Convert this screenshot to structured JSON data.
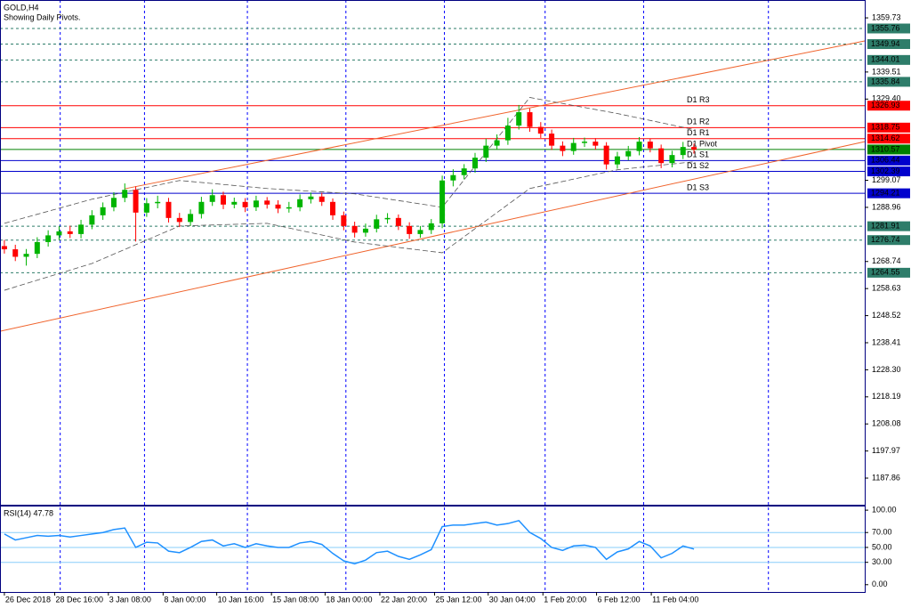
{
  "chart_data": {
    "type": "candlestick",
    "title": "GOLD,H4",
    "subtitle": "Showing Daily Pivots.",
    "bull_color": "#00b400",
    "bear_color": "#ff0000",
    "xlim": [
      -0.4,
      78.6
    ],
    "ylim": [
      1177.9,
      1366.4
    ],
    "xticks": [
      {
        "value": 0,
        "label": "26 Dec 2018"
      },
      {
        "value": 4.6,
        "label": "28 Dec 16:00"
      },
      {
        "value": 9.5,
        "label": "3 Jan 08:00"
      },
      {
        "value": 14.5,
        "label": "8 Jan 00:00"
      },
      {
        "value": 19.4,
        "label": "10 Jan 16:00"
      },
      {
        "value": 24.4,
        "label": "15 Jan 08:00"
      },
      {
        "value": 29.3,
        "label": "18 Jan 00:00"
      },
      {
        "value": 34.3,
        "label": "22 Jan 20:00"
      },
      {
        "value": 39.3,
        "label": "25 Jan 12:00"
      },
      {
        "value": 44.2,
        "label": "30 Jan 04:00"
      },
      {
        "value": 49.2,
        "label": "1 Feb 20:00"
      },
      {
        "value": 54.1,
        "label": "6 Feb 12:00"
      },
      {
        "value": 59.1,
        "label": "11 Feb 04:00"
      }
    ],
    "xgrid": [
      5.1,
      12.8,
      22.2,
      31.2,
      40.2,
      49.4,
      58.4,
      69.8
    ],
    "yticks": [
      1359.73,
      1339.51,
      {
        "value": 1329.4,
        "label": "1329.40"
      },
      1299.07,
      1288.96,
      1268.74,
      1258.63,
      1248.52,
      1238.41,
      {
        "value": 1228.3,
        "label": "1228.30"
      },
      1218.19,
      1208.08,
      1197.97,
      1187.86
    ],
    "open": [
      1274.5,
      1273.3,
      1270.5,
      1271.6,
      1276.0,
      1278.5,
      1280.0,
      1279.0,
      1282.5,
      1286.0,
      1289.0,
      1292.5,
      1295.5,
      1287.0,
      1290.5,
      1291.0,
      1285.0,
      1283.5,
      1286.5,
      1291.0,
      1293.5,
      1290.0,
      1291.0,
      1289.0,
      1291.5,
      1290.0,
      1288.5,
      1289.0,
      1292.0,
      1293.0,
      1291.0,
      1286.0,
      1282.0,
      1279.5,
      1281.0,
      1284.5,
      1285.0,
      1282.0,
      1279.0,
      1280.5,
      1283.0,
      1299.0,
      1301.0,
      1303.5,
      1307.5,
      1312.0,
      1314.0,
      1319.5,
      1324.5,
      1319.0,
      1316.5,
      1312.0,
      1310.0,
      1313.0,
      1313.5,
      1312.0,
      1305.0,
      1308.0,
      1310.0,
      1313.5,
      1311.0,
      1305.5,
      1308.5,
      1311.5
    ],
    "high": [
      1276.8,
      1275.0,
      1273.4,
      1277.8,
      1280.4,
      1281.9,
      1282.1,
      1284.3,
      1287.9,
      1290.8,
      1294.6,
      1297.9,
      1296.8,
      1292.4,
      1293.3,
      1292.5,
      1286.9,
      1288.2,
      1292.9,
      1295.7,
      1294.8,
      1292.6,
      1292.4,
      1293.3,
      1292.8,
      1291.6,
      1291.0,
      1293.8,
      1294.5,
      1294.4,
      1292.3,
      1287.4,
      1283.6,
      1282.9,
      1286.2,
      1286.8,
      1286.3,
      1283.4,
      1282.0,
      1284.6,
      1300.8,
      1303.2,
      1305.1,
      1309.3,
      1314.6,
      1316.2,
      1322.4,
      1327.2,
      1325.9,
      1320.8,
      1318.0,
      1313.6,
      1314.9,
      1315.0,
      1314.8,
      1313.3,
      1309.7,
      1311.9,
      1315.2,
      1314.6,
      1312.4,
      1310.1,
      1313.4,
      1312.8
    ],
    "low": [
      1271.7,
      1268.9,
      1267.2,
      1270.0,
      1274.3,
      1276.8,
      1277.5,
      1277.4,
      1280.8,
      1284.3,
      1287.5,
      1290.9,
      1276.2,
      1285.4,
      1288.6,
      1283.3,
      1281.6,
      1282.0,
      1284.8,
      1289.5,
      1288.3,
      1288.6,
      1287.2,
      1287.6,
      1288.5,
      1286.8,
      1287.0,
      1287.5,
      1290.4,
      1289.5,
      1284.3,
      1280.4,
      1277.7,
      1278.0,
      1279.6,
      1282.9,
      1280.5,
      1277.2,
      1277.6,
      1279.0,
      1281.2,
      1296.8,
      1299.4,
      1301.9,
      1305.9,
      1310.5,
      1312.3,
      1318.0,
      1317.2,
      1314.9,
      1310.4,
      1308.1,
      1308.6,
      1311.5,
      1310.5,
      1303.1,
      1303.4,
      1306.5,
      1308.4,
      1309.5,
      1303.6,
      1303.9,
      1307.0,
      1309.0
    ],
    "close": [
      1273.3,
      1270.5,
      1271.6,
      1276.0,
      1278.5,
      1280.0,
      1279.0,
      1282.5,
      1286.0,
      1289.0,
      1292.5,
      1295.5,
      1287.0,
      1290.5,
      1291.0,
      1285.0,
      1283.5,
      1286.5,
      1291.0,
      1293.5,
      1290.0,
      1291.0,
      1289.0,
      1291.5,
      1290.0,
      1288.5,
      1289.0,
      1292.0,
      1293.0,
      1291.0,
      1286.0,
      1282.0,
      1279.5,
      1281.0,
      1284.5,
      1285.0,
      1282.0,
      1279.0,
      1280.5,
      1283.0,
      1299.0,
      1301.0,
      1303.5,
      1307.5,
      1312.0,
      1314.0,
      1319.5,
      1324.5,
      1319.0,
      1316.5,
      1312.0,
      1310.0,
      1313.0,
      1313.5,
      1312.0,
      1305.0,
      1308.0,
      1310.0,
      1313.5,
      1311.0,
      1305.5,
      1308.5,
      1311.5,
      1310.5
    ],
    "bands": {
      "color": "#555555",
      "x": [
        0,
        8,
        16,
        24,
        32,
        40,
        48,
        56,
        63
      ],
      "upper": [
        1283,
        1292,
        1299,
        1296,
        1294,
        1289,
        1330,
        1324,
        1318
      ],
      "lower": [
        1258,
        1268,
        1282,
        1283,
        1276,
        1272,
        1296,
        1303,
        1306
      ]
    },
    "trendlines": {
      "color": "#f0642d",
      "lines": [
        {
          "x": [
            11,
            78.6
          ],
          "y": [
            1295.9,
            1351.1
          ]
        },
        {
          "x": [
            -0.4,
            78.6
          ],
          "y": [
            1242.7,
            1313.5
          ]
        }
      ]
    },
    "levels": {
      "color": "#2e7d6a",
      "values": [
        1355.76,
        1349.94,
        1344.01,
        1335.84,
        1281.91,
        1276.74,
        1264.55
      ]
    },
    "pivots": [
      {
        "name": "D1 R3",
        "value": 1326.93,
        "color": "#ff0000"
      },
      {
        "name": "D1 R2",
        "value": 1318.75,
        "color": "#ff0000"
      },
      {
        "name": "D1 R1",
        "value": 1314.62,
        "color": "#ff0000"
      },
      {
        "name": "D1 Pivot",
        "value": 1310.57,
        "color": "#008000"
      },
      {
        "name": "D1 S1",
        "value": 1306.44,
        "color": "#0000cd"
      },
      {
        "name": "D1 S2",
        "value": 1302.39,
        "color": "#0000cd"
      },
      {
        "name": "D1 S3",
        "value": 1294.21,
        "color": "#0000cd"
      }
    ],
    "rsi": {
      "label": "RSI(14) 47.78",
      "color": "#1e90ff",
      "level_color": "#87cefa",
      "ylim": [
        -9.8,
        106.1
      ],
      "yticks": [
        {
          "value": 100,
          "label": "100.00"
        },
        {
          "value": 70,
          "label": "70.00"
        },
        {
          "value": 50,
          "label": "50.00"
        },
        {
          "value": 30,
          "label": "30.00"
        },
        {
          "value": 0,
          "label": "0.00"
        }
      ],
      "levels": [
        70,
        50,
        30
      ],
      "values": [
        68,
        60,
        63,
        66,
        65,
        66,
        64,
        66,
        68,
        70,
        74,
        76,
        50,
        57,
        56,
        45,
        43,
        50,
        58,
        60,
        52,
        55,
        50,
        55,
        52,
        50,
        50,
        56,
        58,
        54,
        42,
        32,
        28,
        33,
        43,
        45,
        38,
        34,
        40,
        47,
        78,
        80,
        80,
        82,
        84,
        80,
        82,
        86,
        70,
        62,
        50,
        46,
        52,
        53,
        50,
        34,
        44,
        48,
        58,
        52,
        36,
        42,
        52,
        47.78
      ]
    }
  }
}
